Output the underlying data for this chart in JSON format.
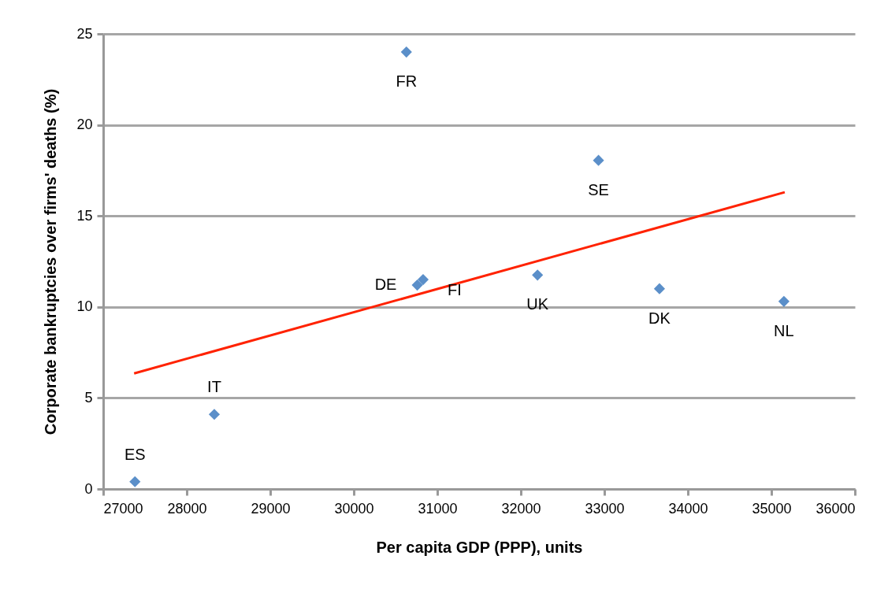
{
  "chart_data": {
    "type": "scatter",
    "xlabel": "Per capita GDP (PPP), units",
    "ylabel": "Corporate bankruptcies over firms' deaths (%)",
    "xlim": [
      27000,
      36000
    ],
    "xticks": [
      27000,
      28000,
      29000,
      30000,
      31000,
      32000,
      33000,
      34000,
      35000,
      36000
    ],
    "ylim": [
      0,
      25
    ],
    "yticks": [
      0,
      5,
      10,
      15,
      20,
      25
    ],
    "grid": "y",
    "marker": "diamond",
    "series": [
      {
        "color": "#5b8fc9",
        "x": [
          27380,
          28330,
          30630,
          30760,
          30830,
          32200,
          32930,
          33660,
          35150
        ],
        "values": [
          0.4,
          4.1,
          24.0,
          11.2,
          11.5,
          11.75,
          18.05,
          11.0,
          10.3
        ]
      },
      {
        "type": "line",
        "marker": "none",
        "color": "#ff2200",
        "x": [
          27370,
          35160
        ],
        "values": [
          6.35,
          16.3
        ]
      }
    ],
    "annotations": [
      {
        "text": "ES",
        "x": 27380,
        "y": 0.4
      },
      {
        "text": "IT",
        "x": 28330,
        "y": 4.1
      },
      {
        "text": "FR",
        "x": 30630,
        "y": 24.0
      },
      {
        "text": "DE",
        "x": 30760,
        "y": 11.2
      },
      {
        "text": "FI",
        "x": 30830,
        "y": 11.5
      },
      {
        "text": "UK",
        "x": 32200,
        "y": 11.75
      },
      {
        "text": "SE",
        "x": 32930,
        "y": 18.05
      },
      {
        "text": "DK",
        "x": 33660,
        "y": 11.0
      },
      {
        "text": "NL",
        "x": 35150,
        "y": 10.3
      }
    ]
  }
}
